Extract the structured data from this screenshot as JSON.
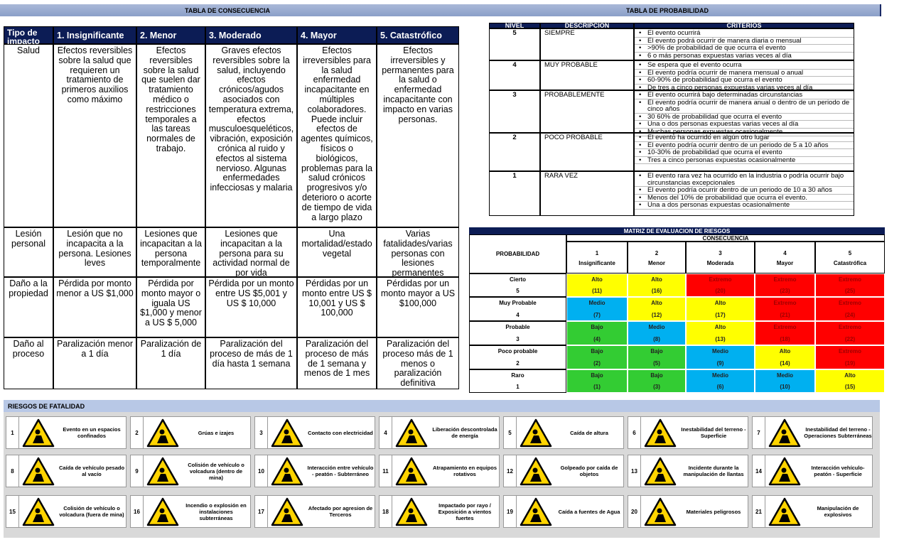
{
  "consequence": {
    "title": "TABLA  DE CONSECUENCIA",
    "headers": [
      "Tipo de impacto",
      "1.  Insignificante",
      "2.  Menor",
      "3.  Moderado",
      "4.  Mayor",
      "5.  Catastrófico"
    ],
    "rows": [
      {
        "label": "Salud",
        "cells": [
          "Efectos reversibles sobre la salud que requieren un tratamiento de primeros auxilios como máximo",
          "Efectos reversibles sobre la salud que suelen dar tratamiento médico o restricciones temporales a las tareas normales de trabajo.",
          "Graves efectos reversibles sobre la salud, incluyendo efectos crónicos/agudos asociados con temperatura extrema, efectos musculoesqueléticos, vibración, exposición crónica al ruido y efectos al sistema nervioso. Algunas enfermedades infecciosas y malaria",
          "Efectos irreversibles para la salud enfermedad incapacitante en múltiples colaboradores. Puede incluir efectos de agentes químicos, físicos o biológicos, problemas para la salud crónicos progresivos y/o deterioro o acorte de tiempo de vida a largo plazo",
          "Efectos irreversibles y permanentes para la salud o enfermedad incapacitante con impacto en varias personas."
        ]
      },
      {
        "label": "Lesión personal",
        "cells": [
          "Lesión que no incapacita a la persona. Lesiones leves",
          "Lesiones que incapacitan a la persona temporalmente",
          "Lesiones que incapacitan a la persona para su actividad normal de por vida",
          "Una mortalidad/estado vegetal",
          "Varias fatalidades/varias personas con lesiones permanentes"
        ]
      },
      {
        "label": "Daño a la propiedad",
        "cells": [
          "Pérdida por monto menor a US $1,000",
          "Pérdida por monto mayor o iguala US $1,000 y menor a US $ 5,000",
          "Pérdida por un monto entre US $5,001 y US $ 10,000",
          "Pérdidas por un monto entre US $ 10,001 y US $ 100,000",
          "Pérdidas por un monto mayor a US $100,000"
        ]
      },
      {
        "label": "Daño al proceso",
        "cells": [
          "Paralización menor a 1 día",
          "Paralización de 1 día",
          "Paralización del proceso de más de 1 día hasta 1 semana",
          "Paralización del proceso de más de 1 semana y menos de 1 mes",
          "Paralización del proceso más de 1 menos o paralización definitiva"
        ]
      }
    ]
  },
  "probability": {
    "title": "TABLA  DE PROBABILIDAD",
    "headers": [
      "NIVEL",
      "DESCRIPCIÓN",
      "CRITERIOS"
    ],
    "rows": [
      {
        "level": "5",
        "description": "SIEMPRE",
        "criteria": [
          "El evento ocurrirá",
          "El evento podrá ocurrir de manera diaria o mensual",
          ">90% de probabilidad de que ocurra el evento",
          "6 o más personas expuestas varias veces al día"
        ]
      },
      {
        "level": "4",
        "description": "MUY PROBABLE",
        "criteria": [
          "Se espera que el evento ocurra",
          "El evento podría ocurrir de manera mensual o anual",
          "60-90% de probabilidad que ocurra el evento",
          "De tres a cinco personas expuestas varias veces al día"
        ]
      },
      {
        "level": "3",
        "description": "PROBABLEMENTE",
        "criteria": [
          "El evento ocurrirá bajo determinadas circunstancias",
          "El evento podría ocurrir de manera anual o dentro de un periodo de cinco años",
          "30 60% de probabilidad que ocurra el evento",
          "Una o dos personas expuestas varias veces al día",
          "Muchas personas expuestas ocasionalmente"
        ]
      },
      {
        "level": "2",
        "description": "POCO PROBABLE",
        "criteria": [
          "El evento ha ocurrido en algún otro lugar",
          "El evento podría ocurrir dentro de un periodo de 5 a 10 años",
          "10-30% de probabilidad que ocurra el evento",
          "Tres a cinco personas expuestas ocasionalmente"
        ]
      },
      {
        "level": "1",
        "description": "RARA VEZ",
        "criteria": [
          "El evento rara vez ha ocurrido en la industria o podría ocurrir bajo circunstancias excepcionales",
          "El evento podría ocurrir dentro de un periodo de 10 a 30 años",
          "Menos del 10% de probabilidad que ocurra el evento.",
          "Una a dos personas expuestas ocasionalmente"
        ]
      }
    ]
  },
  "matrix": {
    "title": "MATRIZ DE EVALUACION DE RIESGOS",
    "consequence_label": "CONSECUENCIA",
    "probability_label": "PROBABILIDAD",
    "columns": [
      {
        "number": "1",
        "name": "Insignificante"
      },
      {
        "number": "2",
        "name": "Menor"
      },
      {
        "number": "3",
        "name": "Moderada"
      },
      {
        "number": "4",
        "name": "Mayor"
      },
      {
        "number": "5",
        "name": "Catastrófica"
      }
    ],
    "rows": [
      {
        "name": "Cierto",
        "number": "5",
        "cells": [
          {
            "label": "Alto",
            "score": "(11)",
            "color": "#ffff00"
          },
          {
            "label": "Alto",
            "score": "(16)",
            "color": "#ffff00"
          },
          {
            "label": "Extremo",
            "score": "(20)",
            "color": "#ff0000"
          },
          {
            "label": "Extremo",
            "score": "(23)",
            "color": "#ff0000"
          },
          {
            "label": "Extremo",
            "score": "(25)",
            "color": "#ff0000"
          }
        ]
      },
      {
        "name": "Muy Probable",
        "number": "4",
        "cells": [
          {
            "label": "Medio",
            "score": "(7)",
            "color": "#00b0f0"
          },
          {
            "label": "Alto",
            "score": "(12)",
            "color": "#ffff00"
          },
          {
            "label": "Alto",
            "score": "(17)",
            "color": "#ffff00"
          },
          {
            "label": "Extremo",
            "score": "(21)",
            "color": "#ff0000"
          },
          {
            "label": "Extremo",
            "score": "(24)",
            "color": "#ff0000"
          }
        ]
      },
      {
        "name": "Probable",
        "number": "3",
        "cells": [
          {
            "label": "Bajo",
            "score": "(4)",
            "color": "#33cc33"
          },
          {
            "label": "Medio",
            "score": "(8)",
            "color": "#00b0f0"
          },
          {
            "label": "Alto",
            "score": "(13)",
            "color": "#ffff00"
          },
          {
            "label": "Extremo",
            "score": "(18)",
            "color": "#ff0000"
          },
          {
            "label": "Extremo",
            "score": "(22)",
            "color": "#ff0000"
          }
        ]
      },
      {
        "name": "Poco probable",
        "number": "2",
        "cells": [
          {
            "label": "Bajo",
            "score": "(2)",
            "color": "#33cc33"
          },
          {
            "label": "Bajo",
            "score": "(5)",
            "color": "#33cc33"
          },
          {
            "label": "Medio",
            "score": "(9)",
            "color": "#00b0f0"
          },
          {
            "label": "Alto",
            "score": "(14)",
            "color": "#ffff00"
          },
          {
            "label": "Extremo",
            "score": "(19)",
            "color": "#ff0000"
          }
        ]
      },
      {
        "name": "Raro",
        "number": "1",
        "cells": [
          {
            "label": "Bajo",
            "score": "(1)",
            "color": "#33cc33"
          },
          {
            "label": "Bajo",
            "score": "(3)",
            "color": "#33cc33"
          },
          {
            "label": "Medio",
            "score": "(6)",
            "color": "#00b0f0"
          },
          {
            "label": "Medio",
            "score": "(10)",
            "color": "#00b0f0"
          },
          {
            "label": "Alto",
            "score": "(15)",
            "color": "#ffff00"
          }
        ]
      }
    ]
  },
  "fatality": {
    "title": "RIESGOS  DE  FATALIDAD",
    "items": [
      {
        "number": "1",
        "text": "Evento en un espacios confinados"
      },
      {
        "number": "2",
        "text": "Grúas e izajes"
      },
      {
        "number": "3",
        "text": "Contacto con electricidad"
      },
      {
        "number": "4",
        "text": "Liberación descontrolada de energía"
      },
      {
        "number": "5",
        "text": "Caída de altura"
      },
      {
        "number": "6",
        "text": "Inestabilidad del terreno - Superficie"
      },
      {
        "number": "7",
        "text": "Inestabilidad del terreno - Operaciones Subterráneas"
      },
      {
        "number": "8",
        "text": "Caída de vehículo pesado al vacío"
      },
      {
        "number": "9",
        "text": "Colisión de vehículo o volcadura (dentro de mina)"
      },
      {
        "number": "10",
        "text": "Interacción entre vehículo - peatón - Subterráneo"
      },
      {
        "number": "11",
        "text": "Atrapamiento en equipos rotativos"
      },
      {
        "number": "12",
        "text": "Golpeado por caída de objetos"
      },
      {
        "number": "13",
        "text": "Incidente durante la manipulación de llantas"
      },
      {
        "number": "14",
        "text": "Interacción vehículo-peatón - Superficie"
      },
      {
        "number": "15",
        "text": "Colisión de vehículo o volcadura (fuera de mina)"
      },
      {
        "number": "16",
        "text": "Incendio o explosión en instalaciones subterráneas"
      },
      {
        "number": "17",
        "text": "Afectado por agresion de Terceros"
      },
      {
        "number": "18",
        "text": "Impactado por rayo / Exposición a vientos fuertes"
      },
      {
        "number": "19",
        "text": "Caída a fuentes de Agua"
      },
      {
        "number": "20",
        "text": "Materiales peligrosos"
      },
      {
        "number": "21",
        "text": "Manipulación de explosivos"
      }
    ]
  }
}
